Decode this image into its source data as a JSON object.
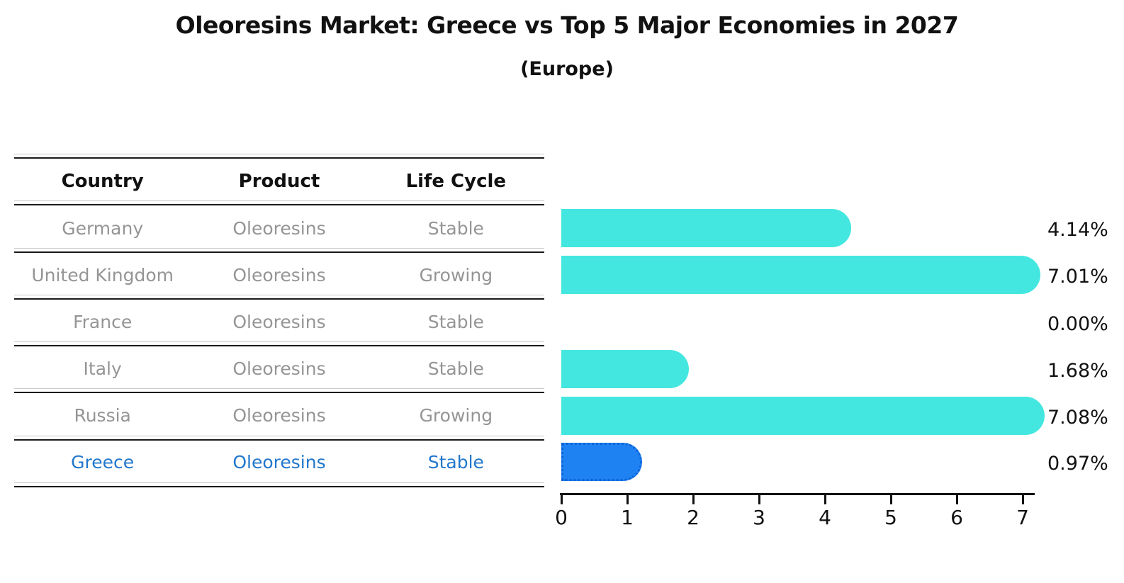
{
  "title": "Oleoresins Market: Greece vs Top 5 Major Economies in 2027",
  "subtitle": "(Europe)",
  "table": {
    "headers": [
      "Country",
      "Product",
      "Life Cycle"
    ],
    "rows": [
      {
        "country": "Germany",
        "product": "Oleoresins",
        "life_cycle": "Stable"
      },
      {
        "country": "United Kingdom",
        "product": "Oleoresins",
        "life_cycle": "Growing"
      },
      {
        "country": "France",
        "product": "Oleoresins",
        "life_cycle": "Stable"
      },
      {
        "country": "Italy",
        "product": "Oleoresins",
        "life_cycle": "Stable"
      },
      {
        "country": "Russia",
        "product": "Oleoresins",
        "life_cycle": "Growing"
      },
      {
        "country": "Greece",
        "product": "Oleoresins",
        "life_cycle": "Stable"
      }
    ],
    "highlighted_country": "Greece"
  },
  "chart_data": {
    "type": "bar",
    "orientation": "horizontal",
    "title": "Oleoresins Market: Greece vs Top 5 Major Economies in 2027",
    "subtitle": "(Europe)",
    "categories": [
      "Germany",
      "United Kingdom",
      "France",
      "Italy",
      "Russia",
      "Greece"
    ],
    "values": [
      4.14,
      7.01,
      0.0,
      1.68,
      7.08,
      0.97
    ],
    "value_labels": [
      "4.14%",
      "7.01%",
      "0.00%",
      "1.68%",
      "7.08%",
      "0.97%"
    ],
    "highlight_index": 5,
    "x_ticks": [
      "0",
      "1",
      "2",
      "3",
      "4",
      "5",
      "6",
      "7"
    ],
    "xlim": [
      0,
      7.45
    ],
    "grid": false,
    "legend": false,
    "colors": {
      "bar_default": "#44e7e0",
      "bar_highlight": "#1e82f2",
      "bar_highlight_border": "#0e63d8",
      "highlight_text": "#2277cc",
      "table_text": "#959595",
      "header_text": "#111111",
      "axis": "#111111"
    }
  }
}
